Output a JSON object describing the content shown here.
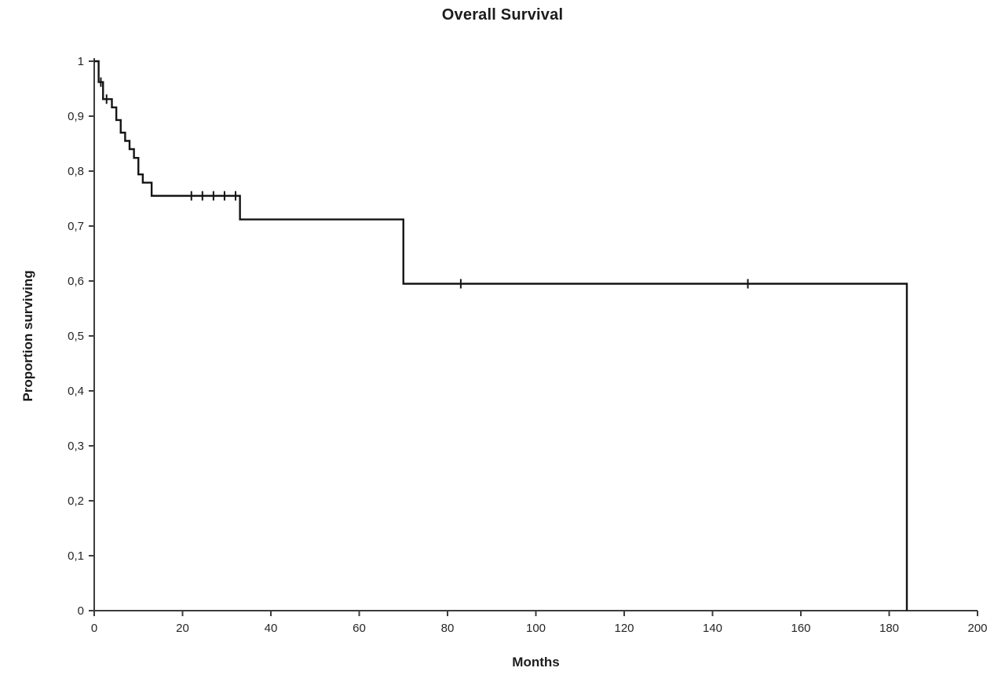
{
  "chart_data": {
    "type": "line",
    "subtype": "kaplan_meier_step",
    "title": "Overall Survival",
    "xlabel": "Months",
    "ylabel": "Proportion surviving",
    "xlim": [
      0,
      200
    ],
    "ylim": [
      0,
      1
    ],
    "x_ticks": [
      0,
      20,
      40,
      60,
      80,
      100,
      120,
      140,
      160,
      180,
      200
    ],
    "x_tick_labels": [
      "0",
      "20",
      "40",
      "60",
      "80",
      "100",
      "120",
      "140",
      "160",
      "180",
      "200"
    ],
    "y_ticks": [
      0,
      0.1,
      0.2,
      0.3,
      0.4,
      0.5,
      0.6,
      0.7,
      0.8,
      0.9,
      1
    ],
    "y_tick_labels": [
      "0",
      "0,1",
      "0,2",
      "0,3",
      "0,4",
      "0,5",
      "0,6",
      "0,7",
      "0,8",
      "0,9",
      "1"
    ],
    "grid": false,
    "legend": false,
    "axis_color": "#3d3d3d",
    "text_color": "#262626",
    "series": [
      {
        "name": "Overall survival",
        "color": "#141414",
        "steps": [
          {
            "t": 0,
            "s": 1.0
          },
          {
            "t": 1,
            "s": 0.962
          },
          {
            "t": 2,
            "s": 0.931
          },
          {
            "t": 4,
            "s": 0.916
          },
          {
            "t": 5,
            "s": 0.893
          },
          {
            "t": 6,
            "s": 0.87
          },
          {
            "t": 7,
            "s": 0.855
          },
          {
            "t": 8,
            "s": 0.84
          },
          {
            "t": 9,
            "s": 0.824
          },
          {
            "t": 10,
            "s": 0.794
          },
          {
            "t": 11,
            "s": 0.779
          },
          {
            "t": 13,
            "s": 0.755
          },
          {
            "t": 33,
            "s": 0.712
          },
          {
            "t": 70,
            "s": 0.595
          },
          {
            "t": 184,
            "s": 0
          }
        ],
        "censor_marks": [
          {
            "t": 1.5,
            "s": 0.962
          },
          {
            "t": 2.8,
            "s": 0.931
          },
          {
            "t": 22,
            "s": 0.755
          },
          {
            "t": 24.5,
            "s": 0.755
          },
          {
            "t": 27,
            "s": 0.755
          },
          {
            "t": 29.5,
            "s": 0.755
          },
          {
            "t": 32,
            "s": 0.755
          },
          {
            "t": 83,
            "s": 0.595
          },
          {
            "t": 148,
            "s": 0.595
          }
        ]
      }
    ]
  }
}
